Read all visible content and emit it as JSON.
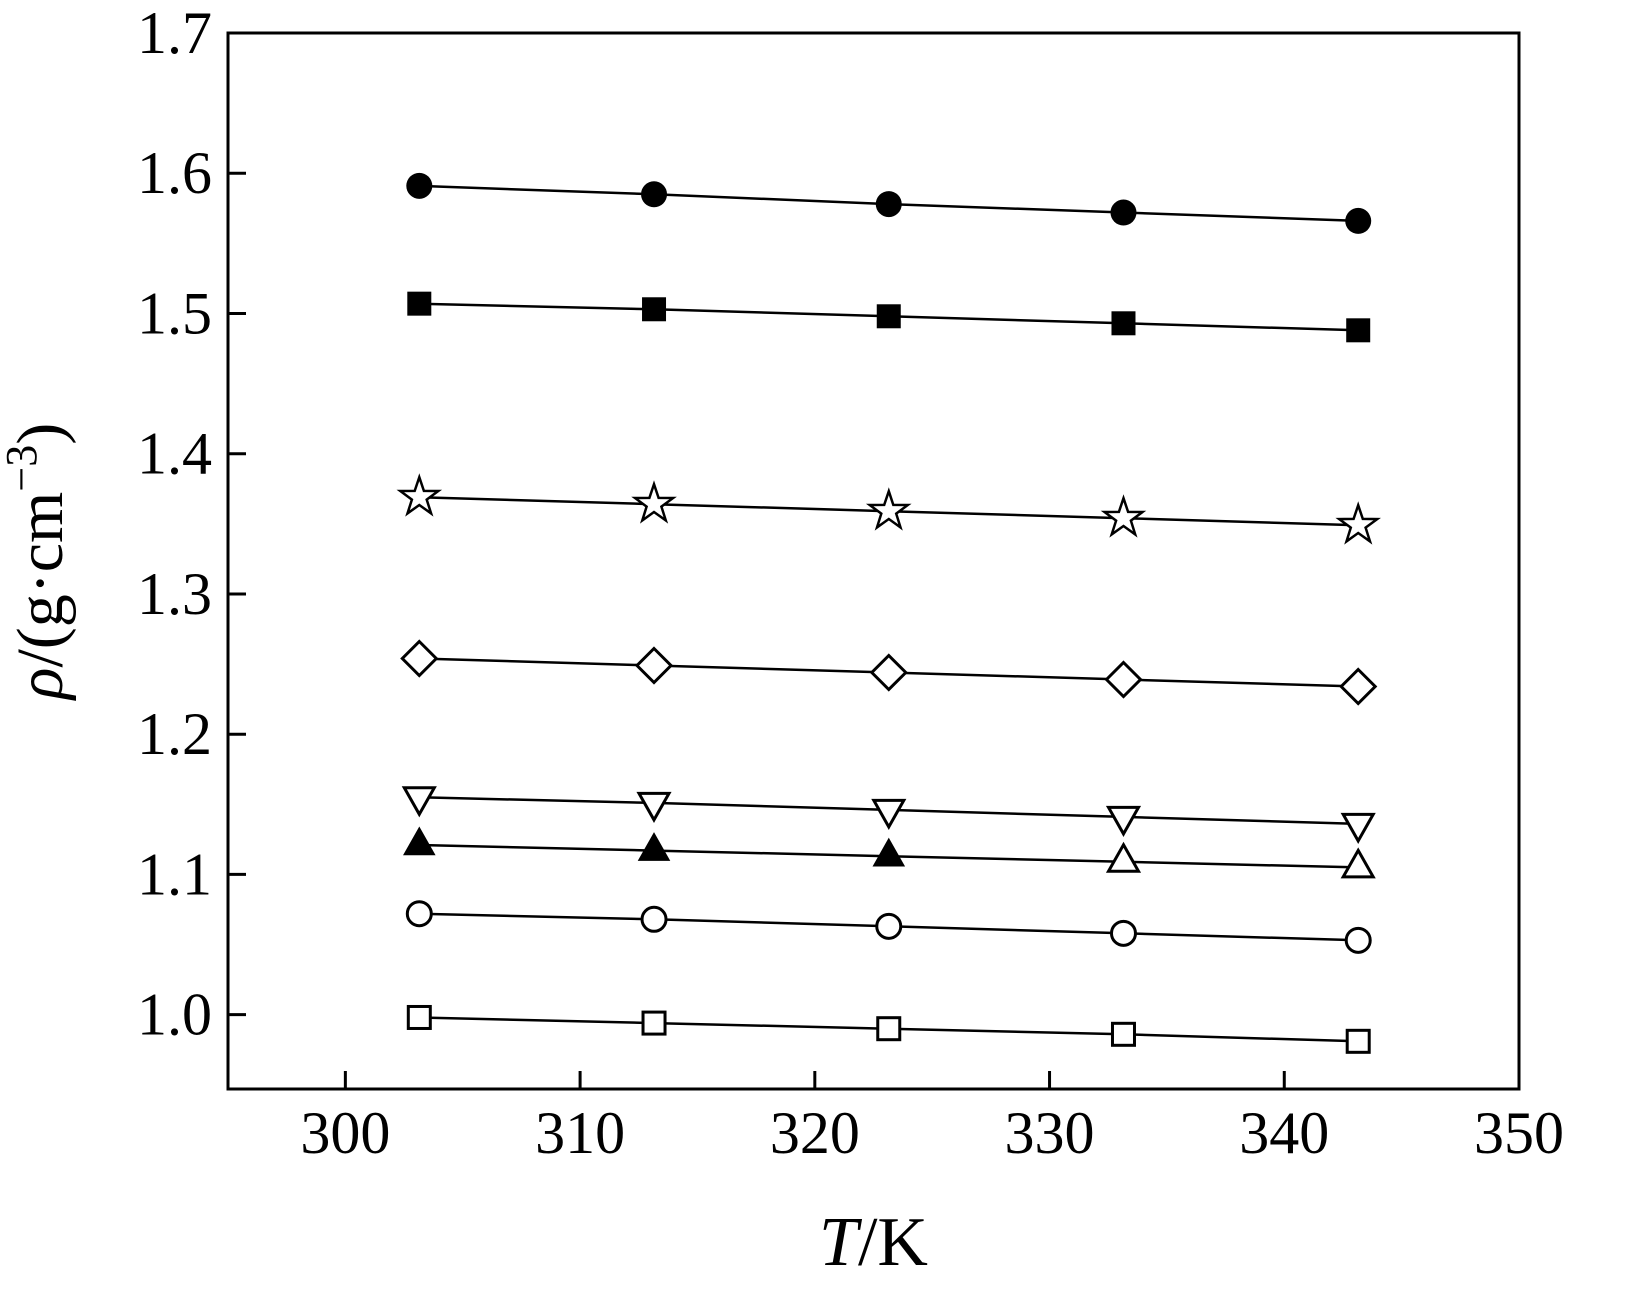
{
  "figure": {
    "xlabel_italic": "T",
    "xlabel_rest": "/K",
    "ylabel_italic": "ρ",
    "ylabel_mid": "/(g·cm",
    "ylabel_sup": "−3",
    "ylabel_end": ")"
  },
  "chart_data": {
    "type": "line",
    "title": "",
    "xlabel": "T/K",
    "ylabel": "ρ/(g·cm⁻³)",
    "xlim": [
      295,
      350
    ],
    "ylim": [
      0.947,
      1.7
    ],
    "x_ticks": [
      300,
      310,
      320,
      330,
      340,
      350
    ],
    "y_ticks": [
      1.0,
      1.1,
      1.2,
      1.3,
      1.4,
      1.5,
      1.6,
      1.7
    ],
    "grid": false,
    "legend": false,
    "x": [
      303.15,
      313.15,
      323.15,
      333.15,
      343.15
    ],
    "series": [
      {
        "name": "filled-circle",
        "marker": "circle-filled",
        "values": [
          1.591,
          1.585,
          1.578,
          1.572,
          1.566
        ]
      },
      {
        "name": "filled-square",
        "marker": "square-filled",
        "values": [
          1.507,
          1.503,
          1.498,
          1.493,
          1.488
        ]
      },
      {
        "name": "open-star",
        "marker": "star-open",
        "values": [
          1.369,
          1.364,
          1.359,
          1.354,
          1.349
        ]
      },
      {
        "name": "open-diamond",
        "marker": "diamond-open",
        "values": [
          1.254,
          1.249,
          1.244,
          1.239,
          1.234
        ]
      },
      {
        "name": "open-triangle-down",
        "marker": "triangle-down-open",
        "values": [
          1.155,
          1.151,
          1.146,
          1.141,
          1.136
        ]
      },
      {
        "name": "triangle-up",
        "marker": "triangle-up-filled",
        "markers": [
          "triangle-up-filled",
          "triangle-up-filled",
          "triangle-up-filled",
          "triangle-up-open",
          "triangle-up-open"
        ],
        "values": [
          1.121,
          1.117,
          1.113,
          1.109,
          1.105
        ]
      },
      {
        "name": "open-circle",
        "marker": "circle-open",
        "values": [
          1.072,
          1.068,
          1.063,
          1.058,
          1.053
        ]
      },
      {
        "name": "open-square",
        "marker": "square-open",
        "values": [
          0.998,
          0.994,
          0.99,
          0.986,
          0.981
        ]
      }
    ]
  }
}
